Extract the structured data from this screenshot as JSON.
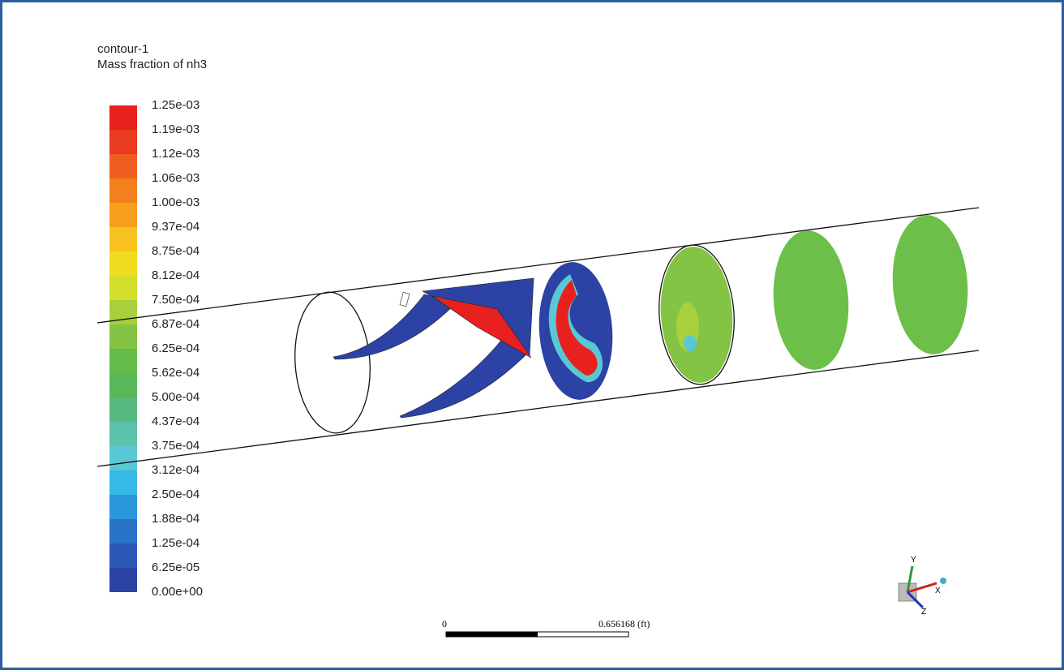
{
  "legend": {
    "title": "contour-1",
    "subtitle": "Mass fraction of nh3",
    "labels": [
      "1.25e-03",
      "1.19e-03",
      "1.12e-03",
      "1.06e-03",
      "1.00e-03",
      "9.37e-04",
      "8.75e-04",
      "8.12e-04",
      "7.50e-04",
      "6.87e-04",
      "6.25e-04",
      "5.62e-04",
      "5.00e-04",
      "4.37e-04",
      "3.75e-04",
      "3.12e-04",
      "2.50e-04",
      "1.88e-04",
      "1.25e-04",
      "6.25e-05",
      "0.00e+00"
    ],
    "colors": [
      "#e8201e",
      "#ea3a1f",
      "#ee5e1e",
      "#f2801c",
      "#f6a01c",
      "#f8c21e",
      "#f2dc20",
      "#d4de2c",
      "#a8d03c",
      "#84c444",
      "#66bc4a",
      "#58b858",
      "#56ba80",
      "#5cc2ac",
      "#5ac8d4",
      "#36b8e8",
      "#2a96dc",
      "#2a74c8",
      "#2e58b6",
      "#2c42a4"
    ]
  },
  "scale_bar": {
    "start": "0",
    "end": "0.656168 (ft)"
  },
  "triad": {
    "y": "Y",
    "x": "X",
    "z": "Z"
  }
}
